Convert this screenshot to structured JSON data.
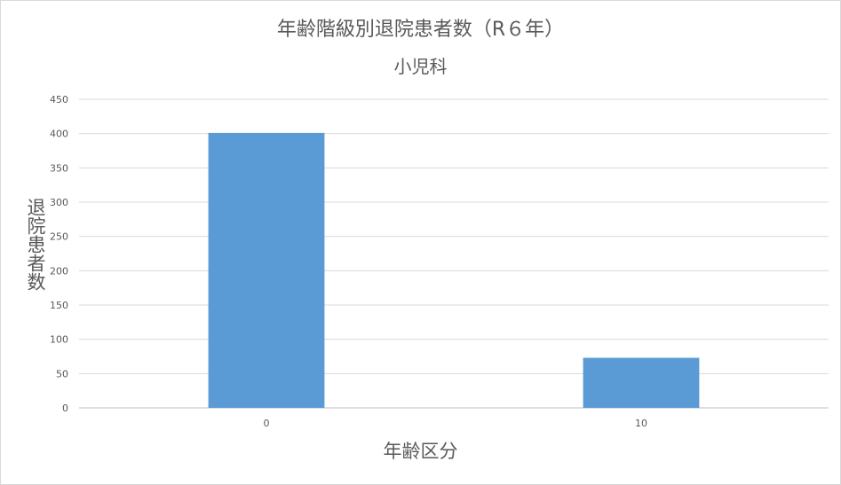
{
  "chart_data": {
    "type": "bar",
    "title": "年齢階級別退院患者数（R６年）",
    "subtitle": "小児科",
    "xlabel": "年齢区分",
    "ylabel": "退院患者数",
    "categories": [
      "0",
      "10"
    ],
    "values": [
      401,
      73
    ],
    "ylim": [
      0,
      450
    ],
    "yticks": [
      "0",
      "50",
      "100",
      "150",
      "200",
      "250",
      "300",
      "350",
      "400",
      "450"
    ],
    "grid": true,
    "legend": "none",
    "bar_color": "#5b9bd5",
    "grid_color": "#d9d9d9"
  }
}
